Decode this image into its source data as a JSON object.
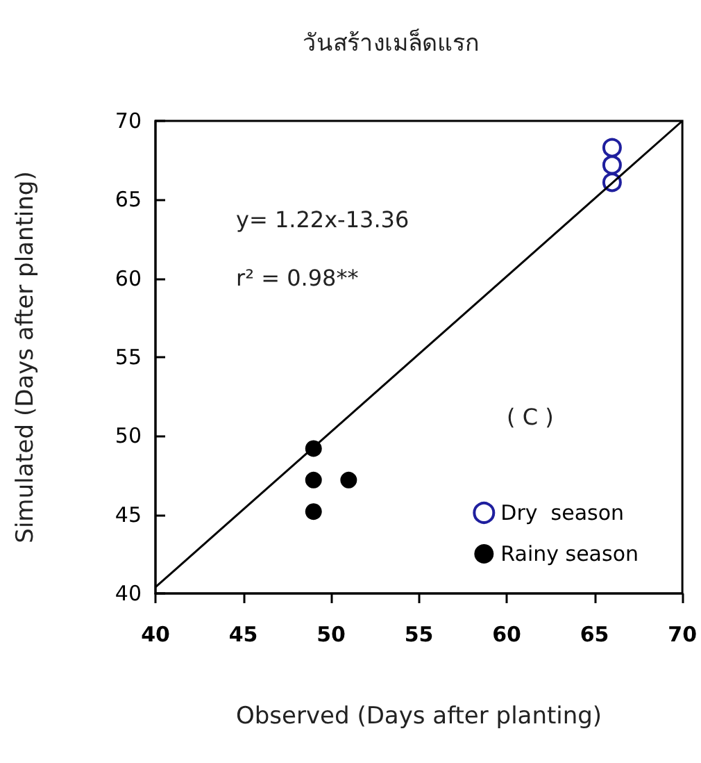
{
  "chart_data": {
    "type": "scatter",
    "title": "วันสร้างเมล็ดแรก",
    "xlabel": "Observed (Days after planting)",
    "ylabel": "Simulated (Days after planting)",
    "annotations": [
      "y= 1.22x-13.36",
      "r² = 0.98**",
      "( C )"
    ],
    "series": [
      {
        "name": "Dry  season",
        "color": "#1f1f9e",
        "x": [
          66,
          66,
          66
        ],
        "values": [
          68.3,
          67.2,
          66.1
        ],
        "marker": "circle"
      },
      {
        "name": "Rainy season",
        "color": "#000000",
        "x": [
          49,
          49,
          51,
          49
        ],
        "values": [
          49.2,
          47.2,
          47.2,
          45.2
        ],
        "marker": "circle"
      },
      {
        "type": "line",
        "color": "#000000",
        "x": [
          40,
          70
        ],
        "values": [
          40.4,
          70
        ],
        "marker": "none"
      }
    ],
    "xlim": [
      40,
      70
    ],
    "xticks": [
      40,
      45,
      50,
      55,
      60,
      65,
      70
    ],
    "ylim": [
      40,
      70
    ],
    "yticks": [
      40,
      45,
      50,
      55,
      60,
      65,
      70
    ],
    "grid": false,
    "legend": "bottom right"
  }
}
